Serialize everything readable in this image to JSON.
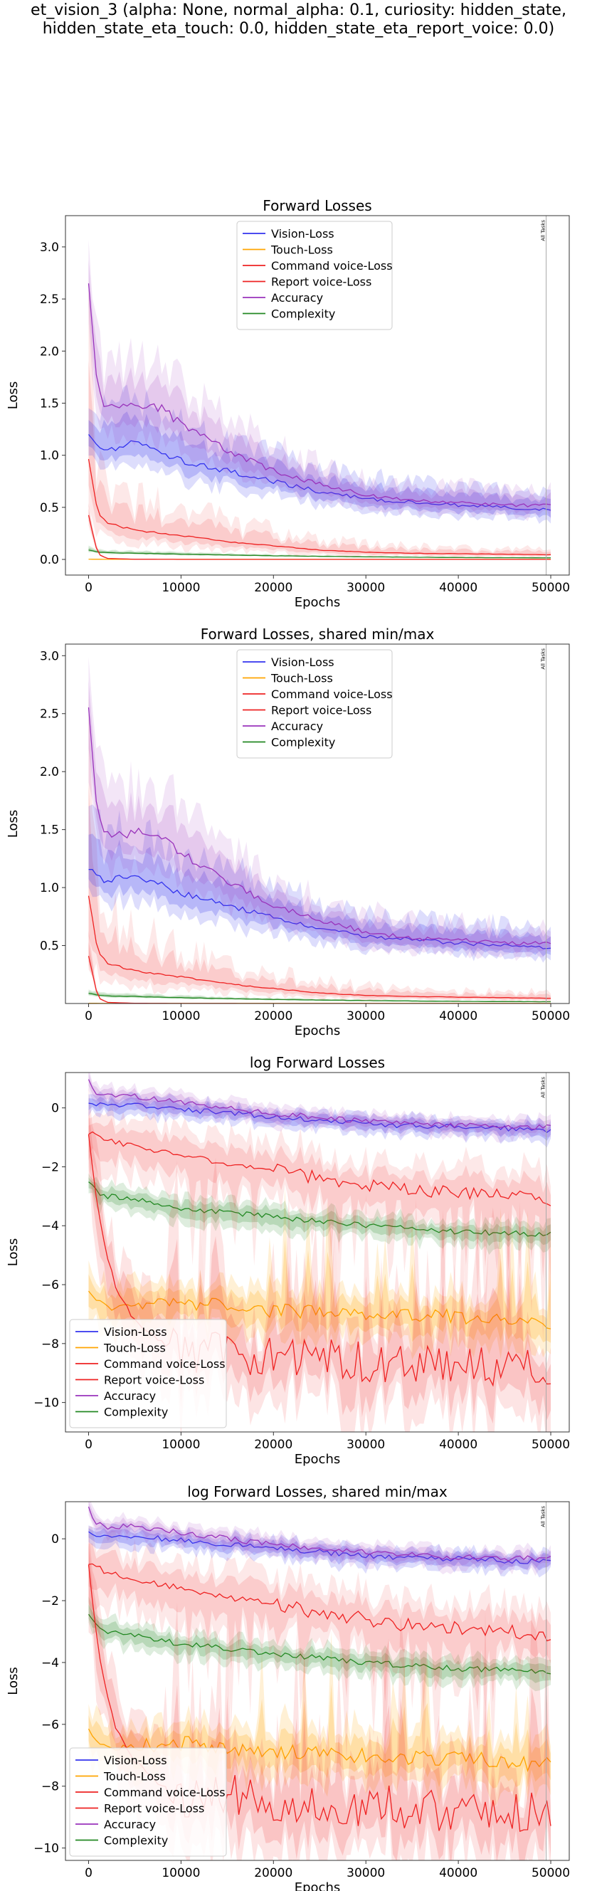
{
  "figure": {
    "suptitle_line1": "et_vision_3 (alpha: None, normal_alpha: 0.1, curiosity: hidden_state,",
    "suptitle_line2": "hidden_state_eta_touch: 0.0, hidden_state_eta_report_voice: 0.0)",
    "vline_label": "All Tasks",
    "series_colors": {
      "Vision-Loss": "#3333ee",
      "Touch-Loss": "#ffa500",
      "Command voice-Loss": "#ee2222",
      "Report voice-Loss": "#ee2222",
      "Accuracy": "#9933bb",
      "Complexity": "#228822"
    }
  },
  "chart_data": [
    {
      "type": "line",
      "title": "Forward Losses",
      "xlabel": "Epochs",
      "ylabel": "Loss",
      "xlim": [
        -2500,
        52000
      ],
      "ylim": [
        -0.15,
        3.3
      ],
      "xticks": [
        0,
        10000,
        20000,
        30000,
        40000,
        50000
      ],
      "yticks": [
        0.0,
        0.5,
        1.0,
        1.5,
        2.0,
        2.5,
        3.0
      ],
      "ytick_labels": [
        "0.0",
        "0.5",
        "1.0",
        "1.5",
        "2.0",
        "2.5",
        "3.0"
      ],
      "legend_position": "upper-center",
      "vline_x": 49500,
      "series": [
        {
          "name": "Vision-Loss",
          "x": [
            0,
            2000,
            5000,
            10000,
            15000,
            20000,
            25000,
            30000,
            35000,
            40000,
            45000,
            50000
          ],
          "values": [
            1.18,
            1.05,
            1.12,
            0.95,
            0.85,
            0.75,
            0.65,
            0.58,
            0.55,
            0.52,
            0.5,
            0.48
          ]
        },
        {
          "name": "Touch-Loss",
          "x": [
            0,
            1000,
            2000,
            5000,
            10000,
            20000,
            30000,
            40000,
            50000
          ],
          "values": [
            0.002,
            0.0015,
            0.0012,
            0.0012,
            0.0011,
            0.001,
            0.001,
            0.001,
            0.001
          ]
        },
        {
          "name": "Command voice-Loss",
          "x": [
            0,
            1000,
            2000,
            5000,
            10000,
            15000,
            20000,
            25000,
            30000,
            35000,
            40000,
            45000,
            50000
          ],
          "values": [
            0.95,
            0.45,
            0.35,
            0.28,
            0.23,
            0.17,
            0.13,
            0.09,
            0.07,
            0.06,
            0.055,
            0.05,
            0.045
          ]
        },
        {
          "name": "Report voice-Loss",
          "x": [
            0,
            1000,
            2000,
            5000,
            10000,
            20000,
            30000,
            40000,
            50000
          ],
          "values": [
            0.42,
            0.05,
            0.01,
            0.002,
            0.0005,
            0.0002,
            0.0002,
            0.0002,
            0.0002
          ]
        },
        {
          "name": "Accuracy",
          "x": [
            0,
            1000,
            2000,
            5000,
            8000,
            10000,
            15000,
            20000,
            25000,
            30000,
            35000,
            40000,
            45000,
            50000
          ],
          "values": [
            2.6,
            1.6,
            1.45,
            1.48,
            1.45,
            1.3,
            1.05,
            0.85,
            0.72,
            0.62,
            0.56,
            0.55,
            0.52,
            0.52
          ]
        },
        {
          "name": "Complexity",
          "x": [
            0,
            1000,
            2000,
            5000,
            10000,
            20000,
            30000,
            40000,
            50000
          ],
          "values": [
            0.09,
            0.07,
            0.065,
            0.06,
            0.05,
            0.035,
            0.025,
            0.018,
            0.015
          ]
        }
      ]
    },
    {
      "type": "line",
      "title": "Forward Losses, shared min/max",
      "xlabel": "Epochs",
      "ylabel": "Loss",
      "xlim": [
        -2500,
        52000
      ],
      "ylim": [
        0.0,
        3.1
      ],
      "xticks": [
        0,
        10000,
        20000,
        30000,
        40000,
        50000
      ],
      "yticks": [
        0.5,
        1.0,
        1.5,
        2.0,
        2.5,
        3.0
      ],
      "ytick_labels": [
        "0.5",
        "1.0",
        "1.5",
        "2.0",
        "2.5",
        "3.0"
      ],
      "legend_position": "upper-center",
      "vline_x": 49500,
      "series": [
        {
          "name": "Vision-Loss",
          "x": [
            0,
            2000,
            5000,
            10000,
            15000,
            20000,
            25000,
            30000,
            35000,
            40000,
            45000,
            50000
          ],
          "values": [
            1.18,
            1.05,
            1.12,
            0.95,
            0.85,
            0.75,
            0.65,
            0.58,
            0.55,
            0.52,
            0.5,
            0.48
          ]
        },
        {
          "name": "Touch-Loss",
          "x": [
            0,
            1000,
            2000,
            5000,
            10000,
            20000,
            30000,
            40000,
            50000
          ],
          "values": [
            0.002,
            0.0015,
            0.0012,
            0.0012,
            0.0011,
            0.001,
            0.001,
            0.001,
            0.001
          ]
        },
        {
          "name": "Command voice-Loss",
          "x": [
            0,
            1000,
            2000,
            5000,
            10000,
            15000,
            20000,
            25000,
            30000,
            35000,
            40000,
            45000,
            50000
          ],
          "values": [
            0.95,
            0.45,
            0.35,
            0.28,
            0.23,
            0.17,
            0.13,
            0.09,
            0.07,
            0.06,
            0.055,
            0.05,
            0.045
          ]
        },
        {
          "name": "Report voice-Loss",
          "x": [
            0,
            1000,
            2000,
            5000,
            10000,
            20000,
            30000,
            40000,
            50000
          ],
          "values": [
            0.42,
            0.05,
            0.01,
            0.002,
            0.0005,
            0.0002,
            0.0002,
            0.0002,
            0.0002
          ]
        },
        {
          "name": "Accuracy",
          "x": [
            0,
            1000,
            2000,
            5000,
            8000,
            10000,
            15000,
            20000,
            25000,
            30000,
            35000,
            40000,
            45000,
            50000
          ],
          "values": [
            2.6,
            1.6,
            1.45,
            1.48,
            1.45,
            1.3,
            1.05,
            0.85,
            0.72,
            0.62,
            0.56,
            0.55,
            0.52,
            0.52
          ]
        },
        {
          "name": "Complexity",
          "x": [
            0,
            1000,
            2000,
            5000,
            10000,
            20000,
            30000,
            40000,
            50000
          ],
          "values": [
            0.09,
            0.07,
            0.065,
            0.06,
            0.05,
            0.035,
            0.025,
            0.018,
            0.015
          ]
        }
      ]
    },
    {
      "type": "line",
      "title": "log Forward Losses",
      "xlabel": "Epochs",
      "ylabel": "Loss",
      "xlim": [
        -2500,
        52000
      ],
      "ylim": [
        -11.0,
        1.2
      ],
      "xticks": [
        0,
        10000,
        20000,
        30000,
        40000,
        50000
      ],
      "yticks": [
        0,
        -2,
        -4,
        -6,
        -8,
        -10
      ],
      "ytick_labels": [
        "0",
        "−2",
        "−4",
        "−6",
        "−8",
        "−10"
      ],
      "legend_position": "lower-left",
      "vline_x": 49500,
      "series": [
        {
          "name": "Vision-Loss",
          "x": [
            0,
            2000,
            5000,
            10000,
            20000,
            30000,
            40000,
            50000
          ],
          "values": [
            0.15,
            0.05,
            0.1,
            -0.05,
            -0.3,
            -0.55,
            -0.65,
            -0.75
          ]
        },
        {
          "name": "Touch-Loss",
          "x": [
            0,
            2000,
            5000,
            10000,
            20000,
            30000,
            40000,
            50000
          ],
          "values": [
            -6.2,
            -6.8,
            -6.7,
            -6.6,
            -6.9,
            -7.0,
            -7.1,
            -7.3
          ]
        },
        {
          "name": "Command voice-Loss",
          "x": [
            0,
            1000,
            2000,
            5000,
            10000,
            15000,
            20000,
            25000,
            30000,
            35000,
            40000,
            45000,
            50000
          ],
          "values": [
            -0.9,
            -0.9,
            -1.1,
            -1.3,
            -1.6,
            -1.9,
            -2.1,
            -2.4,
            -2.6,
            -2.8,
            -2.9,
            -3.0,
            -3.1
          ]
        },
        {
          "name": "Report voice-Loss",
          "x": [
            0,
            1000,
            2000,
            3000,
            5000,
            8000,
            10000,
            15000,
            20000,
            30000,
            40000,
            50000
          ],
          "values": [
            -0.9,
            -3.5,
            -5.0,
            -6.2,
            -7.2,
            -8.0,
            -8.3,
            -8.3,
            -8.5,
            -8.6,
            -8.8,
            -8.8
          ]
        },
        {
          "name": "Accuracy",
          "x": [
            0,
            1000,
            2000,
            5000,
            10000,
            20000,
            30000,
            40000,
            50000
          ],
          "values": [
            0.95,
            0.45,
            0.4,
            0.4,
            0.2,
            -0.2,
            -0.45,
            -0.6,
            -0.65
          ]
        },
        {
          "name": "Complexity",
          "x": [
            0,
            1000,
            2000,
            5000,
            10000,
            20000,
            30000,
            40000,
            50000
          ],
          "values": [
            -2.5,
            -2.9,
            -3.0,
            -3.1,
            -3.4,
            -3.7,
            -4.0,
            -4.2,
            -4.3
          ]
        }
      ]
    },
    {
      "type": "line",
      "title": "log Forward Losses, shared min/max",
      "xlabel": "Epochs",
      "ylabel": "Loss",
      "xlim": [
        -2500,
        52000
      ],
      "ylim": [
        -10.4,
        1.2
      ],
      "xticks": [
        0,
        10000,
        20000,
        30000,
        40000,
        50000
      ],
      "yticks": [
        0,
        -2,
        -4,
        -6,
        -8,
        -10
      ],
      "ytick_labels": [
        "0",
        "−2",
        "−4",
        "−6",
        "−8",
        "−10"
      ],
      "legend_position": "lower-left",
      "vline_x": 49500,
      "series": [
        {
          "name": "Vision-Loss",
          "x": [
            0,
            2000,
            5000,
            10000,
            20000,
            30000,
            40000,
            50000
          ],
          "values": [
            0.15,
            0.05,
            0.1,
            -0.05,
            -0.3,
            -0.55,
            -0.65,
            -0.75
          ]
        },
        {
          "name": "Touch-Loss",
          "x": [
            0,
            2000,
            5000,
            10000,
            20000,
            30000,
            40000,
            50000
          ],
          "values": [
            -6.2,
            -6.8,
            -6.7,
            -6.6,
            -6.9,
            -7.0,
            -7.1,
            -7.3
          ]
        },
        {
          "name": "Command voice-Loss",
          "x": [
            0,
            1000,
            2000,
            5000,
            10000,
            15000,
            20000,
            25000,
            30000,
            35000,
            40000,
            45000,
            50000
          ],
          "values": [
            -0.9,
            -0.9,
            -1.1,
            -1.3,
            -1.6,
            -1.9,
            -2.1,
            -2.4,
            -2.6,
            -2.8,
            -2.9,
            -3.0,
            -3.1
          ]
        },
        {
          "name": "Report voice-Loss",
          "x": [
            0,
            1000,
            2000,
            3000,
            5000,
            8000,
            10000,
            15000,
            20000,
            30000,
            40000,
            50000
          ],
          "values": [
            -0.9,
            -3.5,
            -5.0,
            -6.2,
            -7.2,
            -8.0,
            -8.3,
            -8.3,
            -8.5,
            -8.6,
            -8.8,
            -8.8
          ]
        },
        {
          "name": "Accuracy",
          "x": [
            0,
            1000,
            2000,
            5000,
            10000,
            20000,
            30000,
            40000,
            50000
          ],
          "values": [
            0.95,
            0.45,
            0.4,
            0.4,
            0.2,
            -0.2,
            -0.45,
            -0.6,
            -0.65
          ]
        },
        {
          "name": "Complexity",
          "x": [
            0,
            1000,
            2000,
            5000,
            10000,
            20000,
            30000,
            40000,
            50000
          ],
          "values": [
            -2.5,
            -2.9,
            -3.0,
            -3.1,
            -3.4,
            -3.7,
            -4.0,
            -4.2,
            -4.3
          ]
        }
      ]
    }
  ]
}
